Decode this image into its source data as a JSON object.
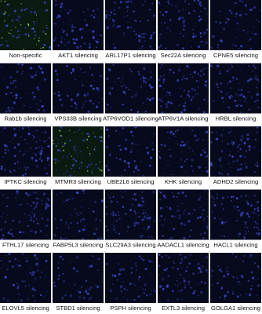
{
  "panels": [
    "Non-specific",
    "AKT1 silencing",
    "ARL17P1 silencing",
    "Sec22A silencing",
    "CPNE5 silencing",
    "Rab1b silencing",
    "VPS33B silencing",
    "ATP6VOD1 silencing",
    "ATP6V1A silencing",
    "HRBL silencing",
    "IPTKC silencing",
    "MTMR3 silencing",
    "UBE2L6 silencing",
    "KHK silencing",
    "ADHD2 silencing",
    "FTHL17 silencing",
    "FABP5L3 silencing",
    "SLC29A3 silencing",
    "AADACL1 silencing",
    "HACL1 silencing",
    "ELOVL5 silencing",
    "STBD1 silencing",
    "PSPH silencing",
    "EXTL3 silencing",
    "GOLGA1 silencing"
  ]
}
